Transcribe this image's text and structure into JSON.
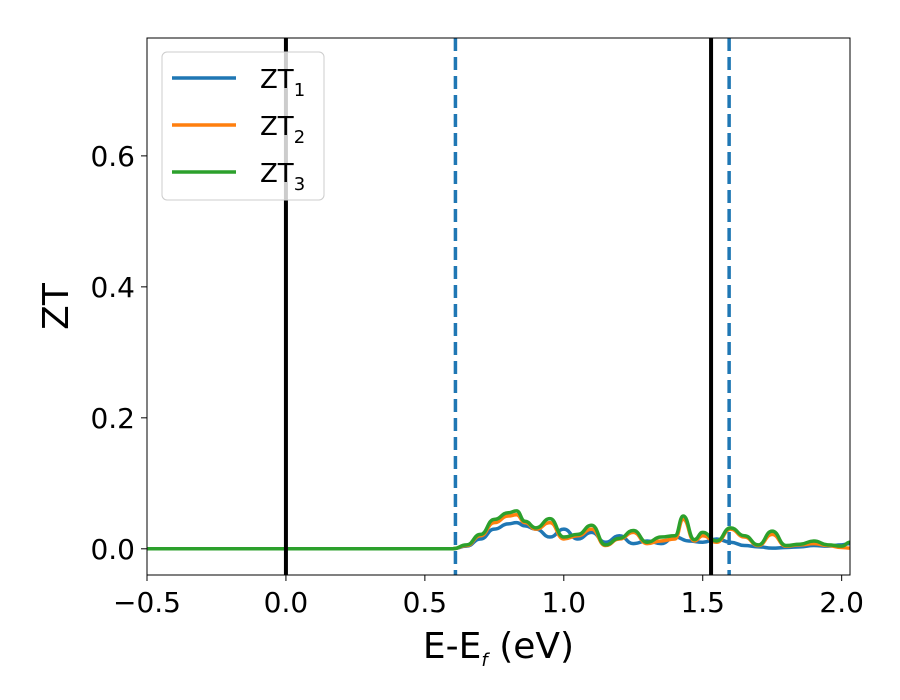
{
  "chart_data": {
    "type": "line",
    "xlabel": {
      "main": "E-E",
      "sub": "f",
      "tail": " (eV)"
    },
    "ylabel": "ZT",
    "xlim": [
      -0.5,
      2.03
    ],
    "ylim": [
      -0.04,
      0.78
    ],
    "xticks": [
      -0.5,
      0.0,
      0.5,
      1.0,
      1.5,
      2.0
    ],
    "xtick_labels": [
      "−0.5",
      "0.0",
      "0.5",
      "1.0",
      "1.5",
      "2.0"
    ],
    "yticks": [
      0.0,
      0.2,
      0.4,
      0.6
    ],
    "ytick_labels": [
      "0.0",
      "0.2",
      "0.4",
      "0.6"
    ],
    "grid": false,
    "legend_position": "top-left",
    "vertical_lines": [
      {
        "x": 0.0,
        "style": "solid",
        "color": "#000000"
      },
      {
        "x": 1.53,
        "style": "solid",
        "color": "#000000"
      },
      {
        "x": 0.61,
        "style": "dashed",
        "color": "#1f77b4"
      },
      {
        "x": 1.595,
        "style": "dashed",
        "color": "#1f77b4"
      }
    ],
    "series": [
      {
        "name": "ZT",
        "name_sub": "1",
        "color": "#1f77b4",
        "x": [
          -0.5,
          0.0,
          0.5,
          0.6,
          0.65,
          0.7,
          0.75,
          0.8,
          0.83,
          0.86,
          0.9,
          0.95,
          1.0,
          1.05,
          1.1,
          1.15,
          1.2,
          1.25,
          1.3,
          1.35,
          1.4,
          1.45,
          1.5,
          1.55,
          1.6,
          1.65,
          1.7,
          1.75,
          1.8,
          1.85,
          1.9,
          1.95,
          2.0,
          2.03
        ],
        "y": [
          0,
          0,
          0,
          0.0,
          0.004,
          0.015,
          0.03,
          0.038,
          0.04,
          0.035,
          0.03,
          0.018,
          0.03,
          0.015,
          0.025,
          0.01,
          0.02,
          0.008,
          0.012,
          0.008,
          0.018,
          0.012,
          0.01,
          0.015,
          0.01,
          0.005,
          0.003,
          0.001,
          0.002,
          0.003,
          0.005,
          0.004,
          0.006,
          0.008
        ]
      },
      {
        "name": "ZT",
        "name_sub": "2",
        "color": "#ff7f0e",
        "x": [
          -0.5,
          0.0,
          0.5,
          0.6,
          0.65,
          0.7,
          0.75,
          0.8,
          0.83,
          0.86,
          0.9,
          0.95,
          1.0,
          1.05,
          1.1,
          1.15,
          1.2,
          1.25,
          1.3,
          1.35,
          1.4,
          1.43,
          1.47,
          1.5,
          1.55,
          1.6,
          1.65,
          1.7,
          1.75,
          1.8,
          1.85,
          1.9,
          1.95,
          2.0,
          2.03
        ],
        "y": [
          0,
          0,
          0,
          0.0,
          0.005,
          0.02,
          0.04,
          0.05,
          0.052,
          0.04,
          0.03,
          0.04,
          0.015,
          0.02,
          0.03,
          0.005,
          0.015,
          0.025,
          0.008,
          0.012,
          0.015,
          0.045,
          0.012,
          0.02,
          0.01,
          0.03,
          0.018,
          0.005,
          0.022,
          0.004,
          0.006,
          0.008,
          0.005,
          0.002,
          0.001
        ]
      },
      {
        "name": "ZT",
        "name_sub": "3",
        "color": "#2ca02c",
        "x": [
          -0.5,
          0.0,
          0.5,
          0.6,
          0.65,
          0.7,
          0.75,
          0.8,
          0.83,
          0.86,
          0.9,
          0.95,
          1.0,
          1.05,
          1.1,
          1.15,
          1.2,
          1.25,
          1.3,
          1.35,
          1.4,
          1.43,
          1.47,
          1.5,
          1.55,
          1.6,
          1.65,
          1.7,
          1.75,
          1.8,
          1.85,
          1.9,
          1.95,
          2.0,
          2.03
        ],
        "y": [
          0,
          0,
          0,
          0.0,
          0.006,
          0.022,
          0.045,
          0.055,
          0.058,
          0.042,
          0.032,
          0.046,
          0.018,
          0.022,
          0.036,
          0.006,
          0.016,
          0.028,
          0.01,
          0.018,
          0.02,
          0.05,
          0.014,
          0.025,
          0.012,
          0.032,
          0.02,
          0.006,
          0.027,
          0.005,
          0.007,
          0.012,
          0.006,
          0.004,
          0.01
        ]
      }
    ]
  }
}
